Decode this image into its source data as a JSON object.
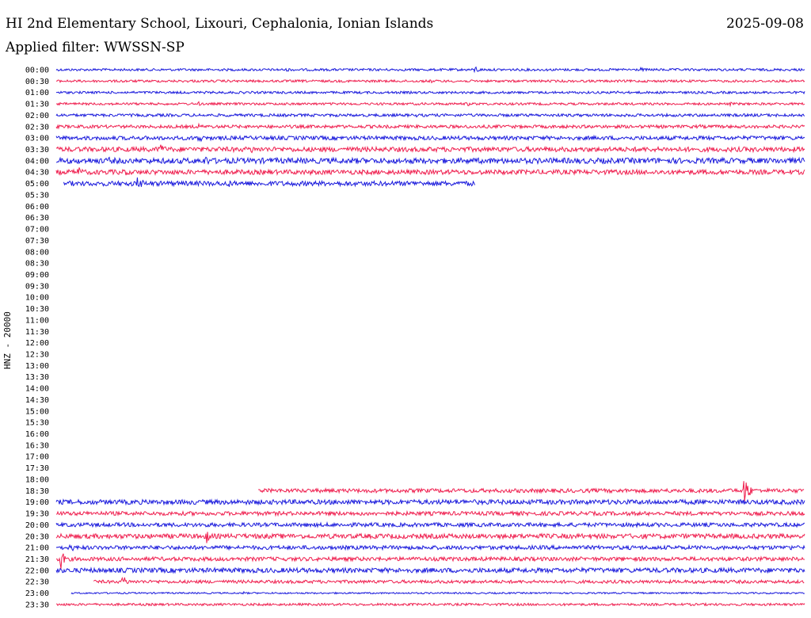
{
  "header": {
    "station": "HI 2nd Elementary School, Lixouri, Cephalonia, Ionian Islands",
    "date": "2025-09-08",
    "filter": "Applied filter: WWSSN-SP"
  },
  "chart_data": {
    "type": "line",
    "title": "HI 2nd Elementary School, Lixouri, Cephalonia, Ionian Islands",
    "ylabel": "HNZ - 20000",
    "xlabel": "",
    "grid": false,
    "colors": {
      "odd": "#1a1adc",
      "even": "#ef1f4f"
    },
    "rows": [
      {
        "label": "00:00",
        "start": 0.0,
        "end": 1.0,
        "amp": 1.5,
        "color": "#1a1adc",
        "events": [
          {
            "pos": 0.31,
            "amp": 3
          },
          {
            "pos": 0.56,
            "amp": 6
          },
          {
            "pos": 0.78,
            "amp": 4
          }
        ]
      },
      {
        "label": "00:30",
        "start": 0.0,
        "end": 1.0,
        "amp": 1.5,
        "color": "#ef1f4f",
        "events": [
          {
            "pos": 0.09,
            "amp": 3
          },
          {
            "pos": 0.18,
            "amp": 3
          },
          {
            "pos": 0.5,
            "amp": 3
          }
        ]
      },
      {
        "label": "01:00",
        "start": 0.0,
        "end": 1.0,
        "amp": 1.5,
        "color": "#1a1adc",
        "events": [
          {
            "pos": 0.25,
            "amp": 2
          },
          {
            "pos": 0.75,
            "amp": 4
          }
        ]
      },
      {
        "label": "01:30",
        "start": 0.0,
        "end": 1.0,
        "amp": 1.5,
        "color": "#ef1f4f",
        "events": [
          {
            "pos": 0.19,
            "amp": 3
          },
          {
            "pos": 0.55,
            "amp": 3
          },
          {
            "pos": 0.9,
            "amp": 3
          }
        ]
      },
      {
        "label": "02:00",
        "start": 0.0,
        "end": 1.0,
        "amp": 1.8,
        "color": "#1a1adc",
        "events": [
          {
            "pos": 0.48,
            "amp": 3
          },
          {
            "pos": 0.96,
            "amp": 3
          }
        ]
      },
      {
        "label": "02:30",
        "start": 0.0,
        "end": 1.0,
        "amp": 2.0,
        "color": "#ef1f4f",
        "events": [
          {
            "pos": 0.19,
            "amp": 4
          },
          {
            "pos": 0.26,
            "amp": 3
          },
          {
            "pos": 0.56,
            "amp": 3
          },
          {
            "pos": 0.86,
            "amp": 3
          }
        ]
      },
      {
        "label": "03:00",
        "start": 0.0,
        "end": 1.0,
        "amp": 2.5,
        "color": "#1a1adc",
        "events": [
          {
            "pos": 0.19,
            "amp": 9
          },
          {
            "pos": 0.76,
            "amp": 4
          }
        ]
      },
      {
        "label": "03:30",
        "start": 0.0,
        "end": 1.0,
        "amp": 3.0,
        "color": "#ef1f4f",
        "events": [
          {
            "pos": 0.14,
            "amp": 11
          },
          {
            "pos": 0.26,
            "amp": 7
          }
        ]
      },
      {
        "label": "04:00",
        "start": 0.0,
        "end": 1.0,
        "amp": 3.5,
        "color": "#1a1adc",
        "events": [
          {
            "pos": 0.07,
            "amp": 6
          },
          {
            "pos": 0.2,
            "amp": 8
          },
          {
            "pos": 0.7,
            "amp": 4
          }
        ]
      },
      {
        "label": "04:30",
        "start": 0.0,
        "end": 1.0,
        "amp": 3.0,
        "color": "#ef1f4f",
        "events": [
          {
            "pos": 0.03,
            "amp": 9
          },
          {
            "pos": 0.07,
            "amp": 6
          },
          {
            "pos": 0.09,
            "amp": 7
          }
        ]
      },
      {
        "label": "05:00",
        "start": 0.01,
        "end": 0.56,
        "amp": 3.0,
        "color": "#1a1adc",
        "events": [
          {
            "pos": 0.11,
            "amp": 13
          },
          {
            "pos": 0.23,
            "amp": 6
          }
        ]
      },
      {
        "label": "05:30"
      },
      {
        "label": "06:00"
      },
      {
        "label": "06:30"
      },
      {
        "label": "07:00"
      },
      {
        "label": "07:30"
      },
      {
        "label": "08:00"
      },
      {
        "label": "08:30"
      },
      {
        "label": "09:00"
      },
      {
        "label": "09:30"
      },
      {
        "label": "10:00"
      },
      {
        "label": "10:30"
      },
      {
        "label": "11:00"
      },
      {
        "label": "11:30"
      },
      {
        "label": "12:00"
      },
      {
        "label": "12:30"
      },
      {
        "label": "13:00"
      },
      {
        "label": "13:30"
      },
      {
        "label": "14:00"
      },
      {
        "label": "14:30"
      },
      {
        "label": "15:00"
      },
      {
        "label": "15:30"
      },
      {
        "label": "16:00"
      },
      {
        "label": "16:30"
      },
      {
        "label": "17:00"
      },
      {
        "label": "17:30"
      },
      {
        "label": "18:00"
      },
      {
        "label": "18:30",
        "start": 0.27,
        "end": 1.0,
        "amp": 2.5,
        "color": "#ef1f4f",
        "events": [
          {
            "pos": 0.55,
            "amp": 4
          },
          {
            "pos": 0.92,
            "amp": 25
          }
        ]
      },
      {
        "label": "19:00",
        "start": 0.0,
        "end": 1.0,
        "amp": 3.0,
        "color": "#1a1adc",
        "events": [
          {
            "pos": 0.12,
            "amp": 3
          }
        ]
      },
      {
        "label": "19:30",
        "start": 0.0,
        "end": 1.0,
        "amp": 2.5,
        "color": "#ef1f4f",
        "events": [
          {
            "pos": 0.5,
            "amp": 3
          }
        ]
      },
      {
        "label": "20:00",
        "start": 0.0,
        "end": 1.0,
        "amp": 2.5,
        "color": "#1a1adc",
        "events": [
          {
            "pos": 0.2,
            "amp": 4
          }
        ]
      },
      {
        "label": "20:30",
        "start": 0.0,
        "end": 1.0,
        "amp": 3.0,
        "color": "#ef1f4f",
        "events": [
          {
            "pos": 0.2,
            "amp": 11
          }
        ]
      },
      {
        "label": "21:00",
        "start": 0.0,
        "end": 1.0,
        "amp": 2.5,
        "color": "#1a1adc",
        "events": [
          {
            "pos": 0.02,
            "amp": 6
          },
          {
            "pos": 0.16,
            "amp": 4
          },
          {
            "pos": 0.98,
            "amp": 5
          }
        ]
      },
      {
        "label": "21:30",
        "start": 0.0,
        "end": 1.0,
        "amp": 2.5,
        "color": "#ef1f4f",
        "events": [
          {
            "pos": 0.005,
            "amp": 17
          }
        ]
      },
      {
        "label": "22:00",
        "start": 0.0,
        "end": 1.0,
        "amp": 3.0,
        "color": "#1a1adc",
        "events": []
      },
      {
        "label": "22:30",
        "start": 0.05,
        "end": 1.0,
        "amp": 2.0,
        "color": "#ef1f4f",
        "events": [
          {
            "pos": 0.09,
            "amp": 9
          }
        ]
      },
      {
        "label": "23:00",
        "start": 0.02,
        "end": 1.0,
        "amp": 1.0,
        "color": "#1a1adc",
        "events": [
          {
            "pos": 0.25,
            "amp": 2
          }
        ]
      },
      {
        "label": "23:30",
        "start": 0.0,
        "end": 1.0,
        "amp": 1.5,
        "color": "#ef1f4f",
        "events": []
      }
    ]
  }
}
